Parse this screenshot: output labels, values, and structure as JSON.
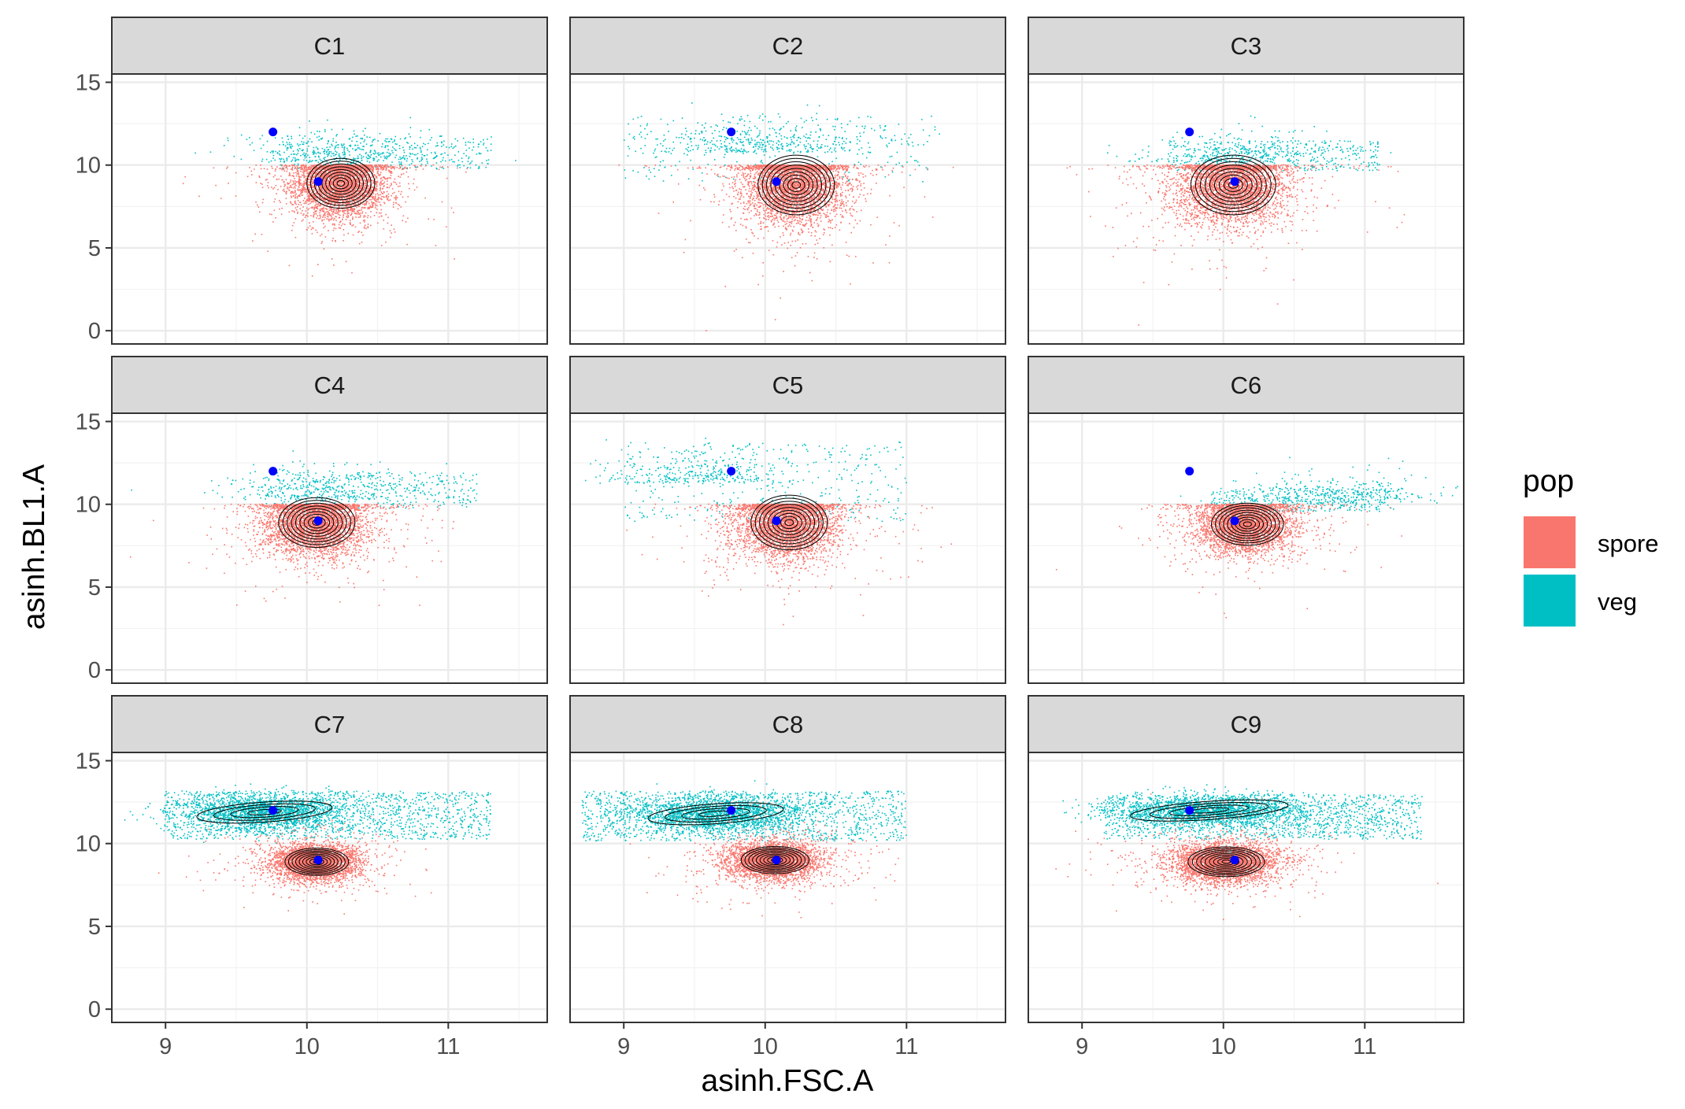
{
  "chart_data": {
    "type": "scatter",
    "xlabel": "asinh.FSC.A",
    "ylabel": "asinh.BL1.A",
    "xlim": [
      8.62,
      11.7
    ],
    "ylim": [
      -0.8,
      15.5
    ],
    "x_ticks": [
      9,
      10,
      11
    ],
    "y_ticks": [
      0,
      5,
      10,
      15
    ],
    "grid": true,
    "legend": {
      "title": "pop",
      "position": "right",
      "entries": [
        {
          "label": "spore",
          "color": "#F8766D"
        },
        {
          "label": "veg",
          "color": "#00BFC4"
        }
      ]
    },
    "reference_points": {
      "color": "#0000FF",
      "points": [
        {
          "x": 9.76,
          "y": 12.0
        },
        {
          "x": 10.08,
          "y": 9.0
        }
      ]
    },
    "contour_color": "#000000",
    "panels": [
      {
        "label": "C1",
        "spore": {
          "cx": 10.22,
          "cy": 8.9,
          "sx": 0.16,
          "sy": 1.0
        },
        "veg": {
          "xmin": 9.8,
          "xmax": 11.3,
          "ymin": 9.8,
          "ymax": 11.8,
          "cx": 10.25,
          "cy": 10.2
        }
      },
      {
        "label": "C2",
        "spore": {
          "cx": 10.2,
          "cy": 8.8,
          "sx": 0.18,
          "sy": 1.2
        },
        "veg": {
          "xmin": 9.0,
          "xmax": 11.2,
          "ymin": 9.0,
          "ymax": 13.0,
          "cx": 10.0,
          "cy": 10.8
        }
      },
      {
        "label": "C3",
        "spore": {
          "cx": 10.05,
          "cy": 8.8,
          "sx": 0.2,
          "sy": 1.2
        },
        "veg": {
          "xmin": 9.6,
          "xmax": 11.1,
          "ymin": 9.7,
          "ymax": 11.5,
          "cx": 10.1,
          "cy": 10.2
        }
      },
      {
        "label": "C4",
        "spore": {
          "cx": 10.05,
          "cy": 8.9,
          "sx": 0.18,
          "sy": 1.0
        },
        "veg": {
          "xmin": 9.7,
          "xmax": 11.2,
          "ymin": 9.8,
          "ymax": 12.0,
          "cx": 10.1,
          "cy": 10.3
        }
      },
      {
        "label": "C5",
        "spore": {
          "cx": 10.15,
          "cy": 8.9,
          "sx": 0.18,
          "sy": 1.1
        },
        "veg": {
          "xmin": 9.0,
          "xmax": 11.0,
          "ymin": 9.0,
          "ymax": 13.8,
          "cx": 9.5,
          "cy": 11.3
        }
      },
      {
        "label": "C6",
        "spore": {
          "cx": 10.15,
          "cy": 8.8,
          "sx": 0.17,
          "sy": 0.85
        },
        "veg": {
          "xmin": 9.9,
          "xmax": 11.2,
          "ymin": 9.6,
          "ymax": 11.0,
          "cx": 10.8,
          "cy": 10.1
        }
      },
      {
        "label": "C7",
        "spore": {
          "cx": 10.05,
          "cy": 8.9,
          "sx": 0.15,
          "sy": 0.55
        },
        "veg": {
          "xmin": 8.98,
          "xmax": 11.3,
          "ymin": 10.3,
          "ymax": 13.2,
          "cx": 9.7,
          "cy": 11.9,
          "sx": 0.3,
          "sy": 0.55
        }
      },
      {
        "label": "C8",
        "spore": {
          "cx": 10.05,
          "cy": 9.0,
          "sx": 0.16,
          "sy": 0.55
        },
        "veg": {
          "xmin": 8.7,
          "xmax": 11.0,
          "ymin": 10.2,
          "ymax": 13.2,
          "cx": 9.65,
          "cy": 11.8,
          "sx": 0.3,
          "sy": 0.55
        }
      },
      {
        "label": "C9",
        "spore": {
          "cx": 10.0,
          "cy": 8.9,
          "sx": 0.18,
          "sy": 0.6
        },
        "veg": {
          "xmin": 9.15,
          "xmax": 11.4,
          "ymin": 10.3,
          "ymax": 13.0,
          "cx": 9.9,
          "cy": 12.0,
          "sx": 0.35,
          "sy": 0.5
        }
      }
    ]
  }
}
